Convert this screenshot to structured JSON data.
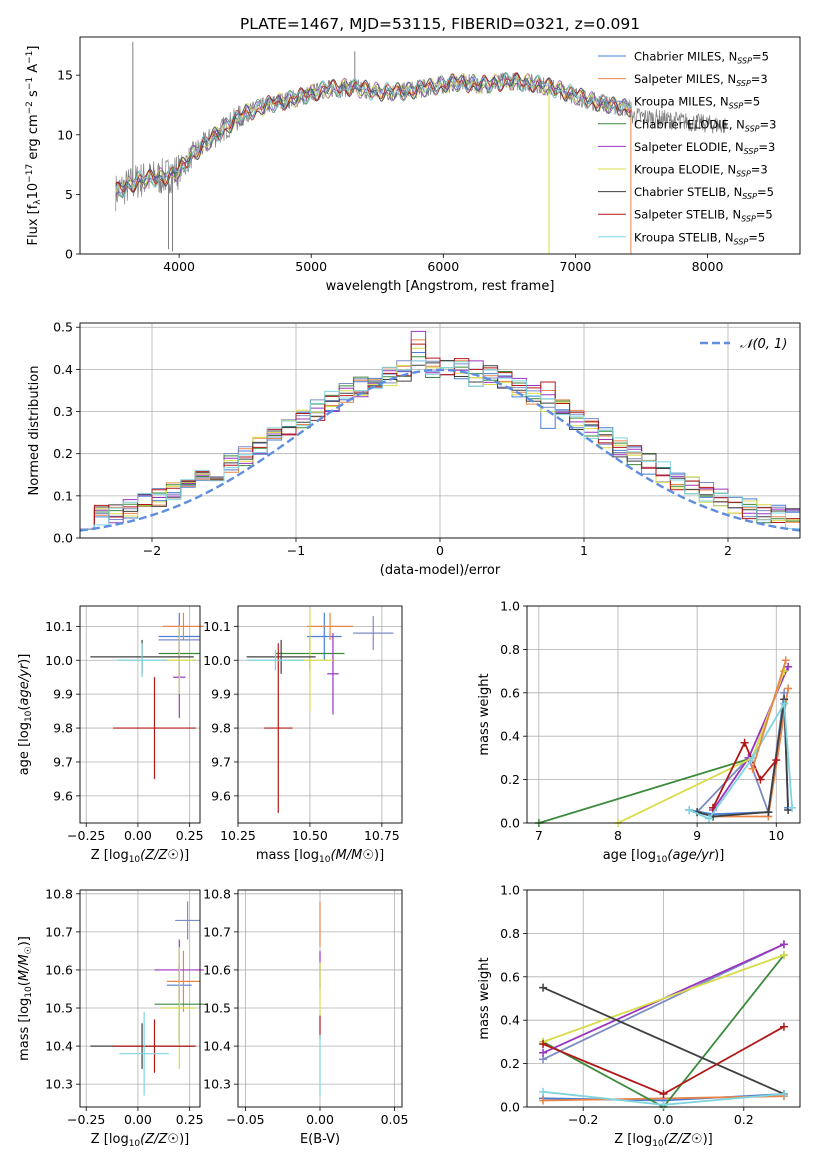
{
  "title": "PLATE=1467, MJD=53115, FIBERID=0321, z=0.091",
  "colors": {
    "Chabrier MILES": "#4a7fd4",
    "Salpeter MILES": "#e8864a",
    "Kroupa MILES": "#7c8cc4",
    "Chabrier ELODIE": "#3c8a3c",
    "Salpeter ELODIE": "#9b35c0",
    "Kroupa ELODIE": "#d9dc4a",
    "Chabrier STELIB": "#404040",
    "Salpeter STELIB": "#b01818",
    "Kroupa STELIB": "#7fd4e0",
    "data": "#7f7f7f",
    "gaussian": "#5f8ee0",
    "grid": "#b0b0b0"
  },
  "chart_data": [
    {
      "id": "spectrum",
      "type": "line",
      "xlabel": "wavelength [Angstrom, rest frame]",
      "ylabel": "Flux [f",
      "xlim": [
        3250,
        8700
      ],
      "ylim": [
        0,
        18.2
      ],
      "xticks": [
        4000,
        5000,
        6000,
        7000,
        8000
      ],
      "yticks": [
        0,
        5,
        10,
        15
      ],
      "grid": false,
      "legend_placement": "top-right",
      "legend": [
        {
          "name": "Chabrier MILES",
          "n": "5"
        },
        {
          "name": "Salpeter MILES",
          "n": "3"
        },
        {
          "name": "Kroupa MILES",
          "n": "5"
        },
        {
          "name": "Chabrier ELODIE",
          "n": "3"
        },
        {
          "name": "Salpeter ELODIE",
          "n": "3"
        },
        {
          "name": "Kroupa ELODIE",
          "n": "3"
        },
        {
          "name": "Chabrier STELIB",
          "n": "5"
        },
        {
          "name": "Salpeter STELIB",
          "n": "5"
        },
        {
          "name": "Kroupa STELIB",
          "n": "5"
        }
      ],
      "continuum": [
        [
          3520,
          5.2
        ],
        [
          3700,
          6.2
        ],
        [
          3900,
          6.5
        ],
        [
          4000,
          7.0
        ],
        [
          4100,
          8.3
        ],
        [
          4300,
          10.2
        ],
        [
          4500,
          11.8
        ],
        [
          4700,
          12.6
        ],
        [
          4900,
          13.1
        ],
        [
          5100,
          13.8
        ],
        [
          5300,
          14.0
        ],
        [
          5500,
          13.6
        ],
        [
          5700,
          13.6
        ],
        [
          5900,
          14.0
        ],
        [
          6100,
          14.4
        ],
        [
          6300,
          14.2
        ],
        [
          6500,
          14.5
        ],
        [
          6700,
          14.3
        ],
        [
          6900,
          13.7
        ],
        [
          7100,
          12.9
        ],
        [
          7300,
          12.4
        ],
        [
          7420,
          12.2
        ]
      ],
      "spikes": [
        [
          3650,
          17.8
        ],
        [
          3920,
          0.4
        ],
        [
          3950,
          0.2
        ],
        [
          6800,
          0
        ],
        [
          7420,
          0
        ],
        [
          5330,
          17.0
        ]
      ]
    },
    {
      "id": "residuals",
      "type": "bar",
      "xlabel": "(data-model)/error",
      "ylabel": "Normed distribution",
      "xlim": [
        -2.5,
        2.5
      ],
      "ylim": [
        0,
        0.51
      ],
      "xticks": [
        -2,
        -1,
        0,
        1,
        2
      ],
      "yticks": [
        0.0,
        0.1,
        0.2,
        0.3,
        0.4,
        0.5
      ],
      "grid": true,
      "legend_placement": "top-right",
      "gaussian_label": "𝒩(0, 1)",
      "bin_width": 0.1,
      "special_bins": [
        {
          "x": -0.2,
          "values": [
            0.44,
            0.47,
            0.42,
            0.43,
            0.49,
            0.45,
            0.41,
            0.46,
            0.42
          ]
        },
        {
          "x": 0.2,
          "values": [
            0.4,
            0.38,
            0.36,
            0.39,
            0.42,
            0.38,
            0.37,
            0.4,
            0.36
          ]
        },
        {
          "x": 0.7,
          "values": [
            0.26,
            0.35,
            0.31,
            0.33,
            0.34,
            0.3,
            0.32,
            0.37,
            0.33
          ]
        }
      ]
    },
    {
      "id": "age-vs-Z",
      "type": "scatter",
      "xlabel": "Z [log",
      "ylabel": "age  [log",
      "xlim": [
        -0.28,
        0.3
      ],
      "ylim": [
        9.52,
        10.16
      ],
      "xticks": [
        -0.25,
        0.0,
        0.25
      ],
      "yticks": [
        9.6,
        9.7,
        9.8,
        9.9,
        10.0,
        10.1
      ],
      "grid": true,
      "points": [
        {
          "model": "Chabrier MILES",
          "x": 0.2,
          "y": 10.07,
          "xerr": 0.1,
          "yerr": 0.07
        },
        {
          "model": "Salpeter MILES",
          "x": 0.22,
          "y": 10.1,
          "xerr": 0.1,
          "yerr": 0.04
        },
        {
          "model": "Kroupa MILES",
          "x": 0.2,
          "y": 10.06,
          "xerr": 0.1,
          "yerr": 0.05
        },
        {
          "model": "Chabrier ELODIE",
          "x": 0.2,
          "y": 10.02,
          "xerr": 0.1,
          "yerr": 0.07
        },
        {
          "model": "Salpeter ELODIE",
          "x": 0.2,
          "y": 9.95,
          "xerr": 0.03,
          "yerr": 0.12
        },
        {
          "model": "Kroupa ELODIE",
          "x": 0.2,
          "y": 10.0,
          "xerr": 0.08,
          "yerr": 0.1
        },
        {
          "model": "Chabrier STELIB",
          "x": 0.02,
          "y": 10.01,
          "xerr": 0.25,
          "yerr": 0.05
        },
        {
          "model": "Salpeter STELIB",
          "x": 0.08,
          "y": 9.8,
          "xerr": 0.2,
          "yerr": 0.15
        },
        {
          "model": "Kroupa STELIB",
          "x": 0.02,
          "y": 10.0,
          "xerr": 0.12,
          "yerr": 0.05
        }
      ]
    },
    {
      "id": "age-vs-mass",
      "type": "scatter",
      "xlabel": "mass [log",
      "ylabel": "",
      "xlim": [
        10.25,
        10.82
      ],
      "ylim": [
        9.52,
        10.16
      ],
      "xticks": [
        10.25,
        10.5,
        10.75
      ],
      "yticks": [
        9.6,
        9.7,
        9.8,
        9.9,
        10.0,
        10.1
      ],
      "grid": true,
      "points": [
        {
          "model": "Chabrier MILES",
          "x": 10.55,
          "y": 10.07,
          "xerr": 0.06,
          "yerr": 0.07
        },
        {
          "model": "Salpeter MILES",
          "x": 10.57,
          "y": 10.1,
          "xerr": 0.08,
          "yerr": 0.04
        },
        {
          "model": "Kroupa MILES",
          "x": 10.72,
          "y": 10.08,
          "xerr": 0.07,
          "yerr": 0.05
        },
        {
          "model": "Chabrier ELODIE",
          "x": 10.5,
          "y": 10.02,
          "xerr": 0.12,
          "yerr": 0.05
        },
        {
          "model": "Salpeter ELODIE",
          "x": 10.58,
          "y": 9.96,
          "xerr": 0.02,
          "yerr": 0.12
        },
        {
          "model": "Kroupa ELODIE",
          "x": 10.5,
          "y": 10.0,
          "xerr": 0.08,
          "yerr": 0.15
        },
        {
          "model": "Chabrier STELIB",
          "x": 10.4,
          "y": 10.01,
          "xerr": 0.12,
          "yerr": 0.05
        },
        {
          "model": "Salpeter STELIB",
          "x": 10.39,
          "y": 9.8,
          "xerr": 0.05,
          "yerr": 0.25
        },
        {
          "model": "Kroupa STELIB",
          "x": 10.38,
          "y": 10.0,
          "xerr": 0.1,
          "yerr": 0.03
        }
      ]
    },
    {
      "id": "weight-vs-age",
      "type": "line",
      "xlabel": "age  [log",
      "ylabel": "mass weight",
      "xlim": [
        6.85,
        10.3
      ],
      "ylim": [
        0,
        1.0
      ],
      "xticks": [
        7,
        8,
        9,
        10
      ],
      "yticks": [
        0.0,
        0.2,
        0.4,
        0.6,
        0.8,
        1.0
      ],
      "grid": true,
      "series": [
        {
          "model": "Chabrier MILES",
          "x": [
            8.9,
            9.2,
            9.9,
            10.1,
            10.15
          ],
          "y": [
            0.06,
            0.04,
            0.05,
            0.55,
            0.07
          ]
        },
        {
          "model": "Salpeter MILES",
          "x": [
            9.2,
            9.9,
            10.15
          ],
          "y": [
            0.03,
            0.03,
            0.62
          ]
        },
        {
          "model": "Kroupa MILES",
          "x": [
            9.0,
            9.65,
            9.9,
            10.1
          ],
          "y": [
            0.05,
            0.3,
            0.05,
            0.6
          ]
        },
        {
          "model": "Chabrier ELODIE",
          "x": [
            7.0,
            9.7,
            10.1
          ],
          "y": [
            0.0,
            0.3,
            0.7
          ]
        },
        {
          "model": "Salpeter ELODIE",
          "x": [
            9.2,
            9.65,
            10.15
          ],
          "y": [
            0.06,
            0.3,
            0.72
          ]
        },
        {
          "model": "Kroupa ELODIE",
          "x": [
            8.0,
            9.7,
            10.1
          ],
          "y": [
            0.0,
            0.3,
            0.7
          ]
        },
        {
          "model": "Chabrier STELIB",
          "x": [
            9.0,
            9.2,
            9.9,
            10.1,
            10.15
          ],
          "y": [
            0.05,
            0.03,
            0.05,
            0.57,
            0.06
          ]
        },
        {
          "model": "Salpeter STELIB",
          "x": [
            9.2,
            9.6,
            9.8,
            10.0
          ],
          "y": [
            0.07,
            0.37,
            0.2,
            0.29
          ]
        },
        {
          "model": "Kroupa STELIB",
          "x": [
            8.9,
            9.15,
            9.7,
            10.1,
            10.2
          ],
          "y": [
            0.06,
            0.02,
            0.3,
            0.55,
            0.07
          ]
        },
        {
          "model": "Salpeter MILES",
          "x": [
            9.7,
            10.12
          ],
          "y": [
            0.25,
            0.75
          ]
        }
      ]
    },
    {
      "id": "mass-vs-Z",
      "type": "scatter",
      "xlabel": "Z [log",
      "ylabel": "mass [log",
      "xlim": [
        -0.28,
        0.3
      ],
      "ylim": [
        10.24,
        10.81
      ],
      "xticks": [
        -0.25,
        0.0,
        0.25
      ],
      "yticks": [
        10.3,
        10.4,
        10.5,
        10.6,
        10.7,
        10.8
      ],
      "grid": true,
      "points": [
        {
          "model": "Chabrier MILES",
          "x": 0.2,
          "y": 10.56,
          "xerr": 0.06,
          "yerr": 0.06
        },
        {
          "model": "Salpeter MILES",
          "x": 0.22,
          "y": 10.57,
          "xerr": 0.08,
          "yerr": 0.08
        },
        {
          "model": "Kroupa MILES",
          "x": 0.24,
          "y": 10.73,
          "xerr": 0.06,
          "yerr": 0.05
        },
        {
          "model": "Chabrier ELODIE",
          "x": 0.2,
          "y": 10.51,
          "xerr": 0.12,
          "yerr": 0.1
        },
        {
          "model": "Salpeter ELODIE",
          "x": 0.2,
          "y": 10.6,
          "xerr": 0.12,
          "yerr": 0.08
        },
        {
          "model": "Kroupa ELODIE",
          "x": 0.2,
          "y": 10.5,
          "xerr": 0.08,
          "yerr": 0.16
        },
        {
          "model": "Chabrier STELIB",
          "x": 0.02,
          "y": 10.4,
          "xerr": 0.25,
          "yerr": 0.06
        },
        {
          "model": "Salpeter STELIB",
          "x": 0.08,
          "y": 10.4,
          "xerr": 0.2,
          "yerr": 0.07
        },
        {
          "model": "Kroupa STELIB",
          "x": 0.03,
          "y": 10.38,
          "xerr": 0.12,
          "yerr": 0.11
        }
      ]
    },
    {
      "id": "mass-vs-ebv",
      "type": "scatter",
      "xlabel": "E(B-V)",
      "ylabel": "",
      "xlim": [
        -0.055,
        0.055
      ],
      "ylim": [
        10.24,
        10.81
      ],
      "xticks": [
        -0.05,
        0.0,
        0.05
      ],
      "yticks": [
        10.3,
        10.4,
        10.5,
        10.6,
        10.7,
        10.8
      ],
      "grid": true,
      "points": [
        {
          "model": "Salpeter MILES",
          "x": 0.0,
          "y": 10.72,
          "xerr": 0.0,
          "yerr": 0.06
        },
        {
          "model": "Salpeter ELODIE",
          "x": 0.0,
          "y": 10.6,
          "xerr": 0.0,
          "yerr": 0.05
        },
        {
          "model": "Kroupa ELODIE",
          "x": 0.0,
          "y": 10.55,
          "xerr": 0.0,
          "yerr": 0.07
        },
        {
          "model": "Salpeter STELIB",
          "x": 0.0,
          "y": 10.45,
          "xerr": 0.0,
          "yerr": 0.03
        },
        {
          "model": "Kroupa STELIB",
          "x": 0.0,
          "y": 10.35,
          "xerr": 0.0,
          "yerr": 0.08
        }
      ]
    },
    {
      "id": "weight-vs-Z",
      "type": "line",
      "xlabel": "Z [log",
      "ylabel": "mass weight",
      "xlim": [
        -0.34,
        0.34
      ],
      "ylim": [
        0,
        1.0
      ],
      "xticks": [
        -0.2,
        0.0,
        0.2
      ],
      "yticks": [
        0.0,
        0.2,
        0.4,
        0.6,
        0.8,
        1.0
      ],
      "grid": true,
      "series": [
        {
          "model": "Chabrier MILES",
          "x": [
            -0.3,
            0.0,
            0.3
          ],
          "y": [
            0.04,
            0.03,
            0.06
          ]
        },
        {
          "model": "Salpeter MILES",
          "x": [
            -0.3,
            0.3
          ],
          "y": [
            0.03,
            0.05
          ]
        },
        {
          "model": "Kroupa MILES",
          "x": [
            -0.3,
            0.3
          ],
          "y": [
            0.22,
            0.75
          ]
        },
        {
          "model": "Chabrier ELODIE",
          "x": [
            -0.3,
            0.0,
            0.3
          ],
          "y": [
            0.3,
            0.0,
            0.7
          ]
        },
        {
          "model": "Salpeter ELODIE",
          "x": [
            -0.3,
            0.3
          ],
          "y": [
            0.25,
            0.75
          ]
        },
        {
          "model": "Kroupa ELODIE",
          "x": [
            -0.3,
            0.3
          ],
          "y": [
            0.3,
            0.7
          ]
        },
        {
          "model": "Chabrier STELIB",
          "x": [
            -0.3,
            0.3
          ],
          "y": [
            0.55,
            0.06
          ]
        },
        {
          "model": "Salpeter STELIB",
          "x": [
            -0.3,
            0.0,
            0.3
          ],
          "y": [
            0.29,
            0.06,
            0.37
          ]
        },
        {
          "model": "Kroupa STELIB",
          "x": [
            -0.3,
            0.0,
            0.3
          ],
          "y": [
            0.07,
            0.01,
            0.06
          ]
        }
      ]
    }
  ]
}
